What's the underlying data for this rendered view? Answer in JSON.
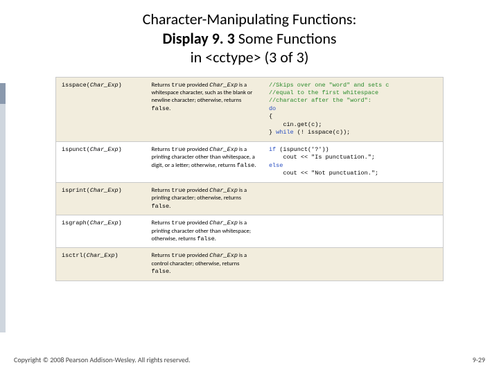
{
  "title": {
    "line1": "Character-Manipulating Functions:",
    "line2_bold": "Display 9. 3",
    "line2_rest": "  Some Functions",
    "line3": "in <cctype> (3 of 3)"
  },
  "colors": {
    "row_even_bg": "#f2eddd",
    "row_odd_bg": "#ffffff",
    "border": "#c9c9c9",
    "keyword_blue": "#2a4fc2",
    "comment_green": "#2a8a2a"
  },
  "rows": [
    {
      "fn_name": "isspace",
      "fn_arg": "Char_Exp",
      "desc_pre": "Returns ",
      "desc_true": "true",
      "desc_mid": " provided ",
      "desc_arg": "Char_Exp",
      "desc_post": " is a whitespace character, such as the blank or newline character; otherwise, returns ",
      "desc_false": "false",
      "desc_end": ".",
      "example": "//Skips over one \"word\" and sets c\n//equal to the first whitespace\n//character after the \"word\":\ndo\n{\n    cin.get(c);\n} while (! isspace(c));",
      "example_comment_lines": 3
    },
    {
      "fn_name": "ispunct",
      "fn_arg": "Char_Exp",
      "desc_pre": "Returns ",
      "desc_true": "true",
      "desc_mid": " provided ",
      "desc_arg": "Char_Exp",
      "desc_post": " is a printing character other than whitespace, a digit, or a letter; otherwise, returns ",
      "desc_false": "false",
      "desc_end": ".",
      "example": "if (ispunct('?'))\n    cout << \"Is punctuation.\";\nelse\n    cout << \"Not punctuation.\";",
      "example_comment_lines": 0
    },
    {
      "fn_name": "isprint",
      "fn_arg": "Char_Exp",
      "desc_pre": "Returns ",
      "desc_true": "true",
      "desc_mid": " provided ",
      "desc_arg": "Char_Exp",
      "desc_post": " is a printing character; otherwise, returns ",
      "desc_false": "false",
      "desc_end": ".",
      "example": "",
      "example_comment_lines": 0
    },
    {
      "fn_name": "isgraph",
      "fn_arg": "Char_Exp",
      "desc_pre": "Returns ",
      "desc_true": "true",
      "desc_mid": " provided ",
      "desc_arg": "Char_Exp",
      "desc_post": " is a printing character other than whitespace; otherwise, returns ",
      "desc_false": "false",
      "desc_end": ".",
      "example": "",
      "example_comment_lines": 0
    },
    {
      "fn_name": "isctrl",
      "fn_arg": "Char_Exp",
      "desc_pre": "Returns ",
      "desc_true": "true",
      "desc_mid": " provided ",
      "desc_arg": "Char_Exp",
      "desc_post": " is a control character; otherwise, returns ",
      "desc_false": "false",
      "desc_end": ".",
      "example": "",
      "example_comment_lines": 0
    }
  ],
  "footer": {
    "copyright": "Copyright © 2008 Pearson Addison-Wesley. All rights reserved.",
    "pagenum": "9-29"
  }
}
